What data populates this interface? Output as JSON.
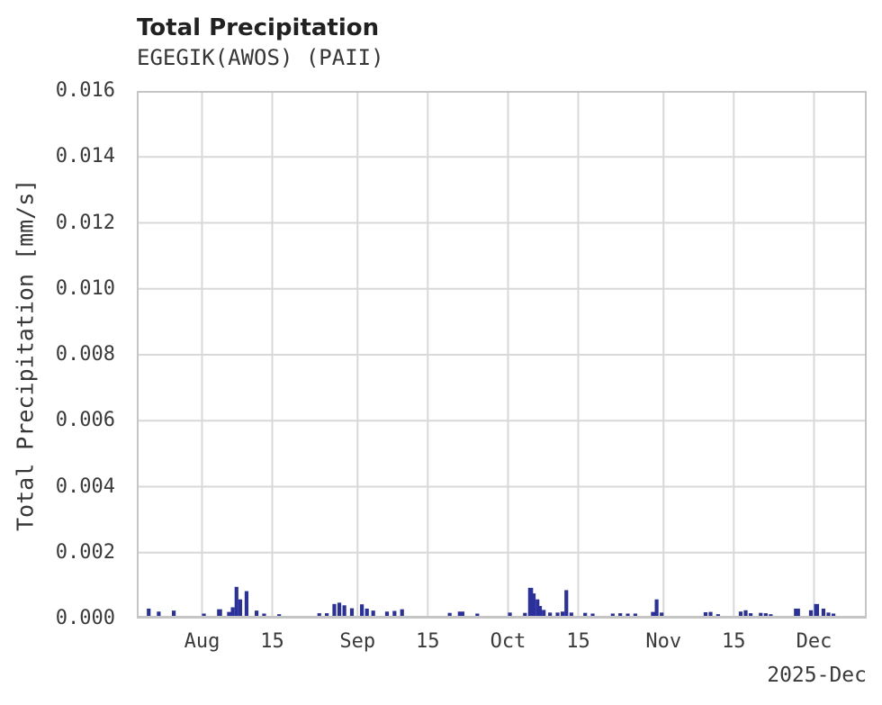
{
  "chart_data": {
    "type": "bar",
    "title": "Total Precipitation",
    "subtitle": "EGEGIK(AWOS) (PAII)",
    "ylabel": "Total Precipitation [mm/s]",
    "xlabel": "",
    "corner_label": "2025-Dec",
    "ylim": [
      0,
      0.016
    ],
    "yticks": [
      "0.000",
      "0.002",
      "0.004",
      "0.006",
      "0.008",
      "0.010",
      "0.012",
      "0.014",
      "0.016"
    ],
    "x_domain": [
      "2025-07-19T00:00Z",
      "2025-12-11T12:00Z"
    ],
    "xticks": [
      {
        "label": "Aug",
        "date": "2025-08-01"
      },
      {
        "label": "15",
        "date": "2025-08-15"
      },
      {
        "label": "Sep",
        "date": "2025-09-01"
      },
      {
        "label": "15",
        "date": "2025-09-15"
      },
      {
        "label": "Oct",
        "date": "2025-10-01"
      },
      {
        "label": "15",
        "date": "2025-10-15"
      },
      {
        "label": "Nov",
        "date": "2025-11-01"
      },
      {
        "label": "15",
        "date": "2025-11-15"
      },
      {
        "label": "Dec",
        "date": "2025-12-01"
      }
    ],
    "grid": true,
    "legend": false,
    "colors": {
      "bar": "#2a319d",
      "grid": "#d8d8d8",
      "spine": "#c5c5c5",
      "title": "#212121",
      "text": "#3a3a3a",
      "background": "#ffffff"
    },
    "bar_width_days": 0.75,
    "bars": [
      {
        "d": "2025-07-21",
        "v": 0.00022
      },
      {
        "d": "2025-07-23",
        "v": 0.00013
      },
      {
        "d": "2025-07-26",
        "v": 0.00016
      },
      {
        "d": "2025-08-01",
        "v": 7e-05
      },
      {
        "d": "2025-08-04",
        "v": 0.0002,
        "w": 1.0
      },
      {
        "d": "2025-08-06",
        "v": 0.00012
      },
      {
        "d": "2025-08-06T18:00Z",
        "v": 0.00026
      },
      {
        "d": "2025-08-07T12:00Z",
        "v": 0.00088
      },
      {
        "d": "2025-08-08T06:00Z",
        "v": 0.0005
      },
      {
        "d": "2025-08-09T12:00Z",
        "v": 0.00075
      },
      {
        "d": "2025-08-11T12:00Z",
        "v": 0.00016
      },
      {
        "d": "2025-08-13",
        "v": 7e-05
      },
      {
        "d": "2025-08-16",
        "v": 5e-05
      },
      {
        "d": "2025-08-24",
        "v": 8e-05
      },
      {
        "d": "2025-08-25T12:00Z",
        "v": 8e-05
      },
      {
        "d": "2025-08-27",
        "v": 0.00036
      },
      {
        "d": "2025-08-28",
        "v": 0.0004
      },
      {
        "d": "2025-08-29",
        "v": 0.00032
      },
      {
        "d": "2025-08-30T12:00Z",
        "v": 0.00023
      },
      {
        "d": "2025-09-01T12:00Z",
        "v": 0.00035
      },
      {
        "d": "2025-09-02T12:00Z",
        "v": 0.00022
      },
      {
        "d": "2025-09-03T18:00Z",
        "v": 0.00016
      },
      {
        "d": "2025-09-06T12:00Z",
        "v": 0.00013
      },
      {
        "d": "2025-09-08",
        "v": 0.00015
      },
      {
        "d": "2025-09-09T12:00Z",
        "v": 0.0002
      },
      {
        "d": "2025-09-19",
        "v": 9e-05
      },
      {
        "d": "2025-09-21",
        "v": 0.00013,
        "w": 1.3
      },
      {
        "d": "2025-09-24T12:00Z",
        "v": 7e-05
      },
      {
        "d": "2025-10-01",
        "v": 0.0001
      },
      {
        "d": "2025-10-04",
        "v": 9e-05
      },
      {
        "d": "2025-10-05",
        "v": 0.00085,
        "w": 1.0
      },
      {
        "d": "2025-10-05T18:00Z",
        "v": 0.00068
      },
      {
        "d": "2025-10-06T12:00Z",
        "v": 0.0005
      },
      {
        "d": "2025-10-07",
        "v": 0.0003
      },
      {
        "d": "2025-10-07T18:00Z",
        "v": 0.00018
      },
      {
        "d": "2025-10-09",
        "v": 0.0001
      },
      {
        "d": "2025-10-10T12:00Z",
        "v": 0.0001
      },
      {
        "d": "2025-10-11T12:00Z",
        "v": 0.00013
      },
      {
        "d": "2025-10-12T06:00Z",
        "v": 0.00078
      },
      {
        "d": "2025-10-13T06:00Z",
        "v": 0.0001
      },
      {
        "d": "2025-10-16",
        "v": 9e-05
      },
      {
        "d": "2025-10-17T12:00Z",
        "v": 7e-05
      },
      {
        "d": "2025-10-21T12:00Z",
        "v": 7e-05
      },
      {
        "d": "2025-10-23",
        "v": 8e-05
      },
      {
        "d": "2025-10-24T12:00Z",
        "v": 7e-05
      },
      {
        "d": "2025-10-26",
        "v": 7e-05
      },
      {
        "d": "2025-10-29T12:00Z",
        "v": 0.00012
      },
      {
        "d": "2025-10-30T06:00Z",
        "v": 0.0005
      },
      {
        "d": "2025-10-31T06:00Z",
        "v": 0.0001
      },
      {
        "d": "2025-11-09",
        "v": 0.00011
      },
      {
        "d": "2025-11-10",
        "v": 0.00012
      },
      {
        "d": "2025-11-11T12:00Z",
        "v": 5e-05
      },
      {
        "d": "2025-11-16",
        "v": 0.00013
      },
      {
        "d": "2025-11-17",
        "v": 0.00017
      },
      {
        "d": "2025-11-18",
        "v": 8e-05
      },
      {
        "d": "2025-11-20",
        "v": 9e-05
      },
      {
        "d": "2025-11-21",
        "v": 8e-05
      },
      {
        "d": "2025-11-22",
        "v": 5e-05
      },
      {
        "d": "2025-11-27",
        "v": 0.00022,
        "w": 1.2
      },
      {
        "d": "2025-11-30",
        "v": 0.00017
      },
      {
        "d": "2025-12-01",
        "v": 0.00036,
        "w": 1.0
      },
      {
        "d": "2025-12-02T12:00Z",
        "v": 0.00022
      },
      {
        "d": "2025-12-03T12:00Z",
        "v": 0.0001
      },
      {
        "d": "2025-12-04T12:00Z",
        "v": 7e-05
      }
    ]
  }
}
